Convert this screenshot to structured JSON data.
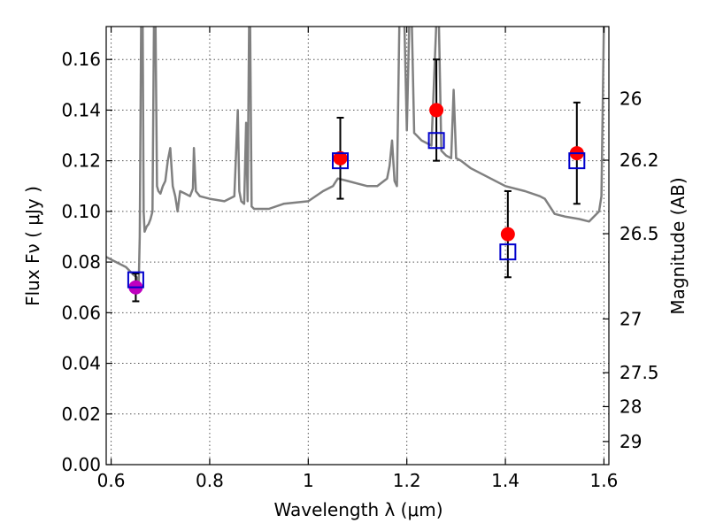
{
  "chart_data": {
    "type": "scatter",
    "title": "",
    "xlabel": "Wavelength  λ (μm)",
    "ylabel": "Flux  Fν  ( μJy )",
    "ylabel_right": "Magnitude (AB)",
    "xlim": [
      0.59,
      1.61
    ],
    "ylim": [
      0.0,
      0.173
    ],
    "grid": true,
    "x_ticks": [
      0.6,
      0.8,
      1.0,
      1.2,
      1.4,
      1.6
    ],
    "x_tick_labels": [
      "0.6",
      "0.8",
      "1",
      "1.2",
      "1.4",
      "1.6"
    ],
    "y_ticks": [
      0.0,
      0.02,
      0.04,
      0.06,
      0.08,
      0.1,
      0.12,
      0.14,
      0.16
    ],
    "y_tick_labels": [
      "0.00",
      "0.02",
      "0.04",
      "0.06",
      "0.08",
      "0.10",
      "0.12",
      "0.14",
      "0.16"
    ],
    "right_ticks": [
      26,
      26.2,
      26.5,
      27,
      27.5,
      28,
      29
    ],
    "right_tick_labels": [
      "26",
      "26.2",
      "26.5",
      "27",
      "27.5",
      "28",
      "29"
    ],
    "series": [
      {
        "kind": "line",
        "color": "#808080",
        "x": [
          0.59,
          0.61,
          0.63,
          0.645,
          0.652,
          0.656,
          0.658,
          0.661,
          0.664,
          0.666,
          0.668,
          0.672,
          0.676,
          0.68,
          0.684,
          0.687,
          0.69,
          0.693,
          0.696,
          0.7,
          0.705,
          0.71,
          0.715,
          0.72,
          0.725,
          0.73,
          0.735,
          0.74,
          0.75,
          0.76,
          0.766,
          0.768,
          0.772,
          0.78,
          0.8,
          0.83,
          0.85,
          0.857,
          0.86,
          0.864,
          0.87,
          0.874,
          0.877,
          0.88,
          0.882,
          0.885,
          0.89,
          0.92,
          0.95,
          1.0,
          1.03,
          1.05,
          1.06,
          1.08,
          1.1,
          1.12,
          1.14,
          1.16,
          1.165,
          1.17,
          1.175,
          1.18,
          1.185,
          1.19,
          1.195,
          1.2,
          1.205,
          1.21,
          1.215,
          1.22,
          1.23,
          1.24,
          1.25,
          1.26,
          1.265,
          1.27,
          1.275,
          1.28,
          1.29,
          1.295,
          1.3,
          1.31,
          1.33,
          1.36,
          1.4,
          1.44,
          1.47,
          1.48,
          1.49,
          1.5,
          1.52,
          1.55,
          1.57,
          1.59,
          1.595,
          1.6,
          1.605
        ],
        "y": [
          0.082,
          0.08,
          0.078,
          0.075,
          0.074,
          0.072,
          0.09,
          0.175,
          0.175,
          0.1,
          0.092,
          0.094,
          0.095,
          0.097,
          0.1,
          0.175,
          0.175,
          0.11,
          0.108,
          0.107,
          0.11,
          0.112,
          0.12,
          0.125,
          0.11,
          0.106,
          0.1,
          0.108,
          0.107,
          0.106,
          0.109,
          0.125,
          0.108,
          0.106,
          0.105,
          0.104,
          0.106,
          0.14,
          0.108,
          0.104,
          0.103,
          0.135,
          0.104,
          0.175,
          0.175,
          0.102,
          0.101,
          0.101,
          0.103,
          0.104,
          0.108,
          0.11,
          0.113,
          0.112,
          0.111,
          0.11,
          0.11,
          0.113,
          0.118,
          0.128,
          0.112,
          0.11,
          0.175,
          0.175,
          0.175,
          0.132,
          0.175,
          0.175,
          0.131,
          0.13,
          0.128,
          0.127,
          0.126,
          0.175,
          0.175,
          0.124,
          0.123,
          0.122,
          0.121,
          0.148,
          0.121,
          0.12,
          0.117,
          0.114,
          0.11,
          0.108,
          0.106,
          0.105,
          0.102,
          0.099,
          0.098,
          0.097,
          0.096,
          0.1,
          0.106,
          0.175,
          0.175
        ]
      },
      {
        "kind": "points",
        "marker": "circle",
        "color": "#ff0000",
        "x": [
          1.065,
          1.26,
          1.405,
          1.545
        ],
        "y": [
          0.121,
          0.14,
          0.091,
          0.123
        ],
        "yerr": [
          0.016,
          0.02,
          0.017,
          0.02
        ]
      },
      {
        "kind": "points",
        "marker": "circle",
        "color": "#bf00bf",
        "x": [
          0.65
        ],
        "y": [
          0.07
        ],
        "yerr": [
          0.0055
        ]
      },
      {
        "kind": "points",
        "marker": "square",
        "color": "#0000cc",
        "x": [
          0.65,
          1.065,
          1.26,
          1.405,
          1.545
        ],
        "y": [
          0.073,
          0.12,
          0.128,
          0.084,
          0.12
        ]
      }
    ]
  }
}
